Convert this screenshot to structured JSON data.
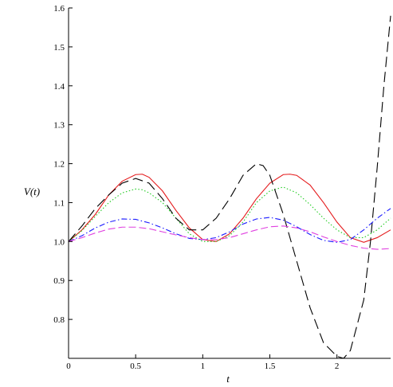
{
  "chart_data": {
    "type": "line",
    "title": "",
    "xlabel": "t",
    "ylabel": "V(t)",
    "xlim": [
      0,
      2.4
    ],
    "ylim": [
      0.7,
      1.6
    ],
    "grid": false,
    "legend": "none",
    "x_ticks": [
      0,
      0.5,
      1,
      1.5,
      2
    ],
    "x_tick_labels": [
      "0",
      "0.5",
      "1",
      "1.5",
      "2"
    ],
    "y_ticks": [
      0.8,
      0.9,
      1.0,
      1.1,
      1.2,
      1.3,
      1.4,
      1.5,
      1.6
    ],
    "y_tick_labels": [
      "0.8",
      "0.9",
      "1.0",
      "1.1",
      "1.2",
      "1.3",
      "1.4",
      "1.5",
      "1.6"
    ],
    "series": [
      {
        "color": "#e41a1c",
        "dash": "solid",
        "x": [
          0,
          0.1,
          0.2,
          0.3,
          0.4,
          0.5,
          0.55,
          0.6,
          0.7,
          0.8,
          0.9,
          1.0,
          1.1,
          1.2,
          1.3,
          1.4,
          1.5,
          1.6,
          1.65,
          1.7,
          1.8,
          1.9,
          2.0,
          2.1,
          2.2,
          2.3,
          2.4
        ],
        "y": [
          1.0,
          1.03,
          1.07,
          1.12,
          1.155,
          1.172,
          1.173,
          1.165,
          1.13,
          1.08,
          1.035,
          1.005,
          1.0,
          1.02,
          1.06,
          1.11,
          1.15,
          1.172,
          1.173,
          1.17,
          1.145,
          1.1,
          1.05,
          1.01,
          0.998,
          1.01,
          1.03
        ]
      },
      {
        "color": "#22cc22",
        "dash": "dotted",
        "x": [
          0,
          0.1,
          0.2,
          0.3,
          0.4,
          0.5,
          0.55,
          0.6,
          0.7,
          0.8,
          0.9,
          1.0,
          1.1,
          1.2,
          1.3,
          1.4,
          1.5,
          1.6,
          1.7,
          1.8,
          1.9,
          2.0,
          2.1,
          2.2,
          2.3,
          2.4
        ],
        "y": [
          1.0,
          1.028,
          1.065,
          1.1,
          1.125,
          1.135,
          1.133,
          1.125,
          1.1,
          1.06,
          1.02,
          1.0,
          1.0,
          1.015,
          1.05,
          1.1,
          1.13,
          1.14,
          1.125,
          1.095,
          1.06,
          1.03,
          1.01,
          1.01,
          1.03,
          1.06
        ]
      },
      {
        "color": "#000000",
        "dash": "longdash",
        "x": [
          0,
          0.1,
          0.2,
          0.3,
          0.4,
          0.5,
          0.6,
          0.7,
          0.8,
          0.9,
          1.0,
          1.1,
          1.2,
          1.3,
          1.4,
          1.45,
          1.5,
          1.6,
          1.7,
          1.8,
          1.9,
          2.0,
          2.05,
          2.1,
          2.2,
          2.25,
          2.3,
          2.35,
          2.4
        ],
        "y": [
          1.0,
          1.04,
          1.085,
          1.12,
          1.15,
          1.162,
          1.15,
          1.11,
          1.06,
          1.03,
          1.03,
          1.06,
          1.11,
          1.17,
          1.2,
          1.195,
          1.17,
          1.07,
          0.95,
          0.83,
          0.74,
          0.705,
          0.7,
          0.72,
          0.85,
          1.0,
          1.19,
          1.4,
          1.58
        ]
      },
      {
        "color": "#1a1aff",
        "dash": "dashdot",
        "x": [
          0,
          0.1,
          0.2,
          0.3,
          0.4,
          0.5,
          0.6,
          0.7,
          0.8,
          0.9,
          1.0,
          1.1,
          1.2,
          1.3,
          1.4,
          1.5,
          1.6,
          1.7,
          1.8,
          1.9,
          2.0,
          2.1,
          2.2,
          2.3,
          2.4
        ],
        "y": [
          1.0,
          1.015,
          1.035,
          1.05,
          1.058,
          1.057,
          1.048,
          1.035,
          1.02,
          1.008,
          1.005,
          1.01,
          1.025,
          1.045,
          1.058,
          1.062,
          1.055,
          1.038,
          1.018,
          1.003,
          0.998,
          1.005,
          1.03,
          1.06,
          1.085
        ]
      },
      {
        "color": "#e040e0",
        "dash": "dashed",
        "x": [
          0,
          0.1,
          0.2,
          0.3,
          0.4,
          0.5,
          0.6,
          0.7,
          0.8,
          0.9,
          1.0,
          1.1,
          1.2,
          1.3,
          1.4,
          1.5,
          1.6,
          1.7,
          1.8,
          1.9,
          2.0,
          2.1,
          2.2,
          2.3,
          2.4
        ],
        "y": [
          1.0,
          1.01,
          1.022,
          1.032,
          1.037,
          1.037,
          1.033,
          1.025,
          1.017,
          1.01,
          1.005,
          1.005,
          1.01,
          1.02,
          1.03,
          1.038,
          1.04,
          1.035,
          1.025,
          1.012,
          1.0,
          0.99,
          0.983,
          0.98,
          0.982
        ]
      }
    ]
  }
}
